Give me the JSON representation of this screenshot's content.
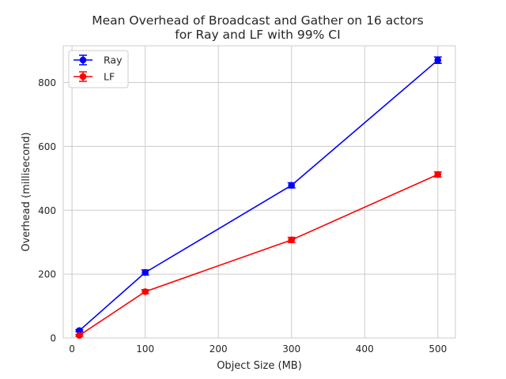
{
  "chart_data": {
    "type": "line",
    "title_line1": "Mean Overhead of Broadcast and Gather on 16 actors",
    "title_line2": "for Ray and LF with 99% CI",
    "xlabel": "Object Size (MB)",
    "ylabel": "Overhead (millisecond)",
    "xlim": [
      -12,
      524
    ],
    "ylim": [
      0,
      915
    ],
    "xticks": [
      0,
      100,
      200,
      300,
      400,
      500
    ],
    "yticks": [
      0,
      200,
      400,
      600,
      800
    ],
    "x": [
      10,
      100,
      300,
      500
    ],
    "grid": true,
    "legend_position": "top-left",
    "series": [
      {
        "name": "Ray",
        "color": "#0000ff",
        "values": [
          23,
          205,
          478,
          870
        ],
        "errors": [
          3,
          8,
          8,
          10
        ]
      },
      {
        "name": "LF",
        "color": "#ff0000",
        "values": [
          8,
          145,
          307,
          512
        ],
        "errors": [
          3,
          6,
          8,
          8
        ]
      }
    ]
  }
}
